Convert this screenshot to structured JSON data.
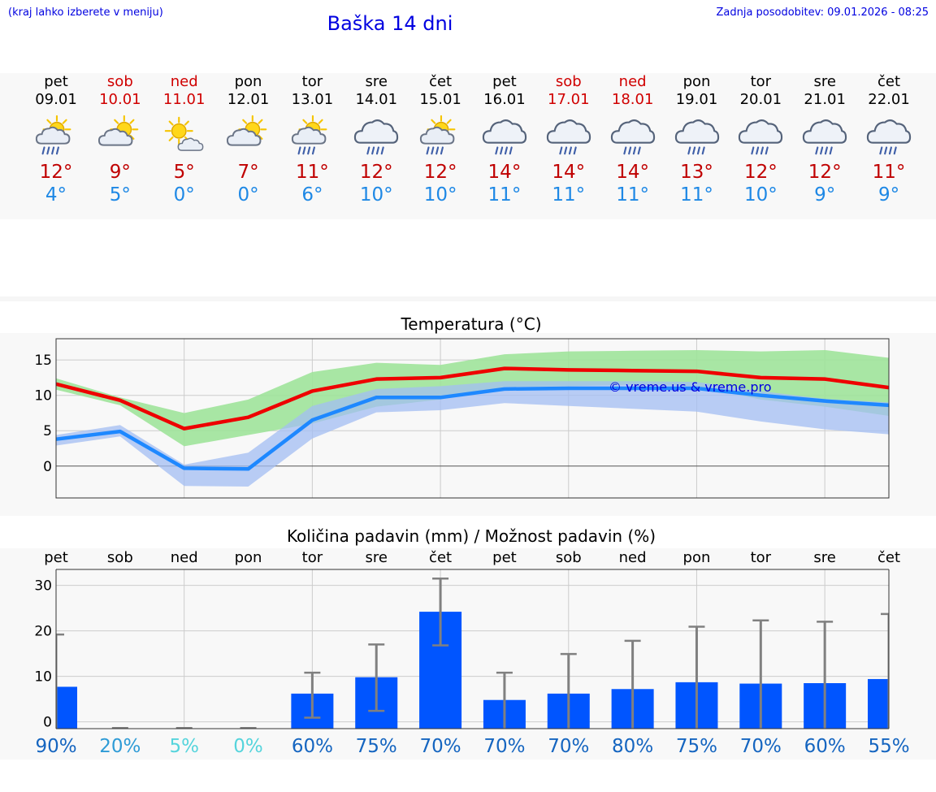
{
  "header": {
    "hint": "(kraj lahko izberete v meniju)",
    "title": "Baška 14 dni",
    "updated": "Zadnja posodobitev: 09.01.2026 - 08:25",
    "watermark": "© vreme.us & vreme.pro"
  },
  "days": [
    {
      "name": "pet",
      "date": "09.01",
      "weekend": false,
      "icon": "sun-cloud-rain-icon",
      "max": "12°",
      "min": "4°"
    },
    {
      "name": "sob",
      "date": "10.01",
      "weekend": true,
      "icon": "sun-cloud-icon",
      "max": "9°",
      "min": "5°"
    },
    {
      "name": "ned",
      "date": "11.01",
      "weekend": true,
      "icon": "sun-small-cloud-icon",
      "max": "5°",
      "min": "0°"
    },
    {
      "name": "pon",
      "date": "12.01",
      "weekend": false,
      "icon": "sun-cloud-icon",
      "max": "7°",
      "min": "0°"
    },
    {
      "name": "tor",
      "date": "13.01",
      "weekend": false,
      "icon": "sun-cloud-rain-icon",
      "max": "11°",
      "min": "6°"
    },
    {
      "name": "sre",
      "date": "14.01",
      "weekend": false,
      "icon": "cloud-rain-icon",
      "max": "12°",
      "min": "10°"
    },
    {
      "name": "čet",
      "date": "15.01",
      "weekend": false,
      "icon": "sun-cloud-rain-icon",
      "max": "12°",
      "min": "10°"
    },
    {
      "name": "pet",
      "date": "16.01",
      "weekend": false,
      "icon": "cloud-rain-icon",
      "max": "14°",
      "min": "11°"
    },
    {
      "name": "sob",
      "date": "17.01",
      "weekend": true,
      "icon": "cloud-rain-icon",
      "max": "14°",
      "min": "11°"
    },
    {
      "name": "ned",
      "date": "18.01",
      "weekend": true,
      "icon": "cloud-rain-icon",
      "max": "14°",
      "min": "11°"
    },
    {
      "name": "pon",
      "date": "19.01",
      "weekend": false,
      "icon": "cloud-rain-icon",
      "max": "13°",
      "min": "11°"
    },
    {
      "name": "tor",
      "date": "20.01",
      "weekend": false,
      "icon": "cloud-rain-icon",
      "max": "12°",
      "min": "10°"
    },
    {
      "name": "sre",
      "date": "21.01",
      "weekend": false,
      "icon": "cloud-rain-icon",
      "max": "12°",
      "min": "9°"
    },
    {
      "name": "čet",
      "date": "22.01",
      "weekend": false,
      "icon": "cloud-rain-icon",
      "max": "11°",
      "min": "9°"
    }
  ],
  "colors": {
    "max_line": "#ee0000",
    "min_line": "#1e88ff",
    "max_band": "#9fe39a",
    "min_band": "#a3bdf3",
    "bar": "#0055ff",
    "whisker": "#808080"
  },
  "chart_data": [
    {
      "type": "line",
      "title": "Temperatura (°C)",
      "x": [
        0,
        1,
        2,
        3,
        4,
        5,
        6,
        7,
        8,
        9,
        10,
        11,
        12,
        13
      ],
      "ylim": [
        -4.5,
        18
      ],
      "yticks": [
        "15",
        "10",
        "5",
        "0"
      ],
      "ytick_values": [
        15,
        10,
        5,
        0
      ],
      "series": [
        {
          "name": "max",
          "values": [
            11.6,
            9.3,
            5.3,
            6.9,
            10.6,
            12.3,
            12.5,
            13.8,
            13.6,
            13.5,
            13.4,
            12.5,
            12.3,
            11.1
          ],
          "band_low": [
            10.8,
            8.6,
            2.8,
            4.4,
            6.0,
            8.4,
            9.4,
            11.2,
            11.3,
            11.5,
            11.3,
            9.4,
            8.4,
            7.1
          ],
          "band_high": [
            12.4,
            9.7,
            7.5,
            9.4,
            13.3,
            14.6,
            14.3,
            15.8,
            16.2,
            16.3,
            16.4,
            16.2,
            16.4,
            15.3
          ]
        },
        {
          "name": "min",
          "values": [
            3.8,
            4.9,
            -0.3,
            -0.4,
            6.5,
            9.7,
            9.7,
            10.9,
            11.0,
            11.0,
            11.0,
            10.0,
            9.2,
            8.6
          ],
          "band_low": [
            2.9,
            4.2,
            -2.8,
            -2.9,
            3.9,
            7.6,
            7.9,
            8.9,
            8.5,
            8.1,
            7.7,
            6.3,
            5.2,
            4.5
          ],
          "band_high": [
            4.4,
            5.8,
            0.2,
            1.9,
            8.5,
            10.9,
            11.3,
            12.0,
            12.0,
            12.0,
            11.9,
            10.6,
            9.5,
            9.0
          ]
        }
      ]
    },
    {
      "type": "bar",
      "title": "Količina padavin (mm) / Možnost padavin (%)",
      "categories": [
        "pet",
        "sob",
        "ned",
        "pon",
        "tor",
        "sre",
        "čet",
        "pet",
        "sob",
        "ned",
        "pon",
        "tor",
        "sre",
        "čet"
      ],
      "values": [
        7.7,
        0,
        0,
        0,
        6.2,
        9.8,
        24.2,
        4.8,
        6.2,
        7.2,
        8.7,
        8.4,
        8.5,
        9.4
      ],
      "error_low": [
        0,
        0,
        0,
        0,
        0.9,
        2.4,
        16.8,
        0,
        0,
        0,
        0,
        0,
        0,
        0
      ],
      "error_high": [
        19.2,
        0,
        0,
        0,
        10.8,
        17.0,
        31.5,
        10.8,
        14.9,
        17.8,
        20.9,
        22.3,
        22.0,
        23.7
      ],
      "ylim": [
        -1.5,
        33.5
      ],
      "yticks": [
        "30",
        "20",
        "10",
        "0"
      ],
      "ytick_values": [
        30,
        20,
        10,
        0
      ],
      "probabilities": [
        "90%",
        "20%",
        "5%",
        "0%",
        "60%",
        "75%",
        "70%",
        "70%",
        "70%",
        "80%",
        "75%",
        "70%",
        "60%",
        "55%"
      ],
      "probability_colors": [
        "#1565c0",
        "#2e9bd6",
        "#55d4dc",
        "#55d4dc",
        "#1565c0",
        "#1565c0",
        "#1565c0",
        "#1565c0",
        "#1565c0",
        "#1565c0",
        "#1565c0",
        "#1565c0",
        "#1565c0",
        "#1565c0"
      ]
    }
  ]
}
